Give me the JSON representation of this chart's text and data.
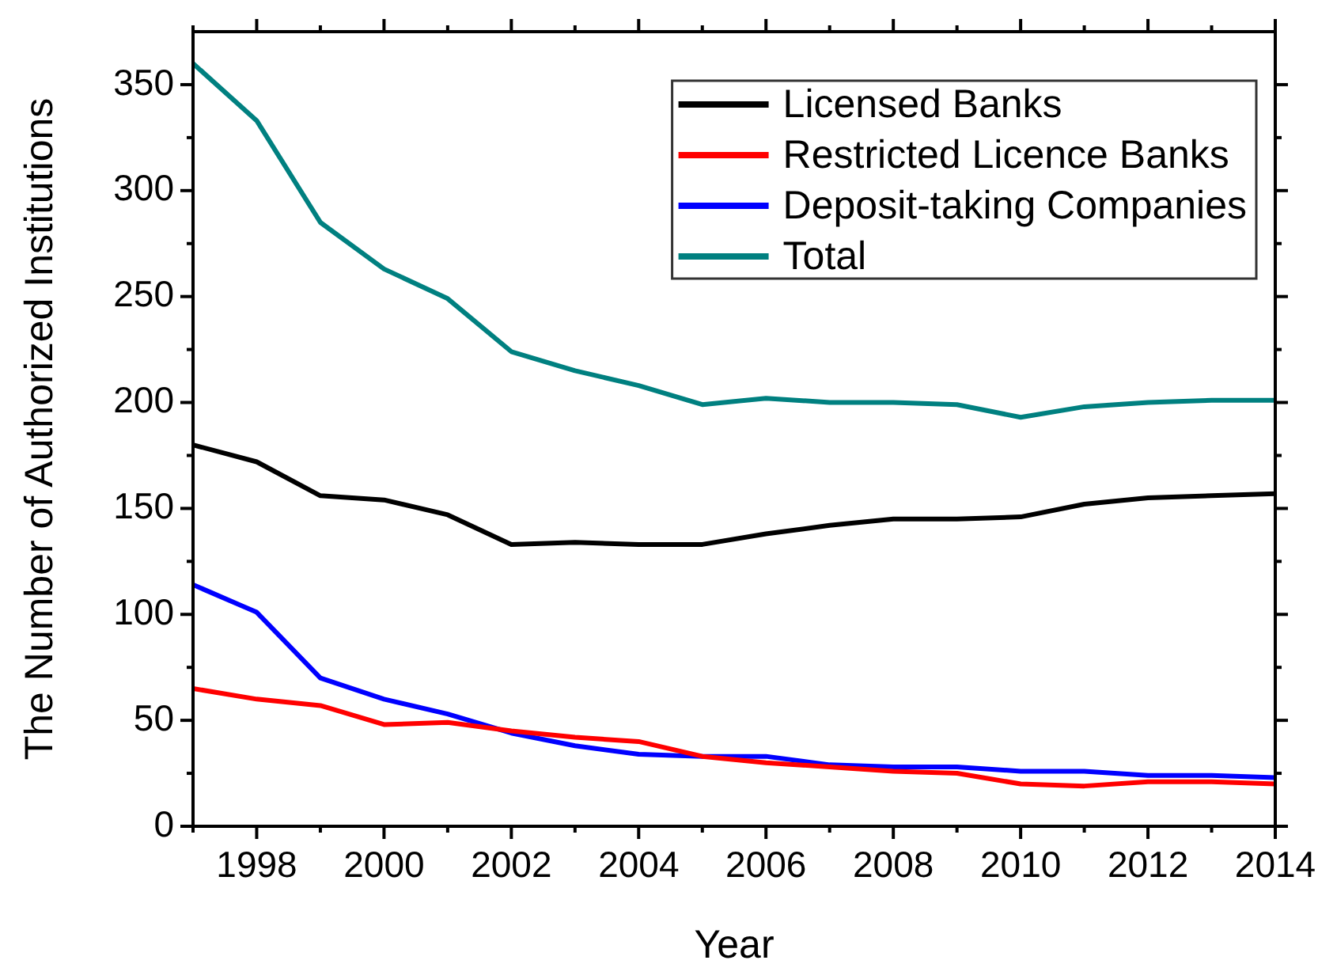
{
  "chart_data": {
    "type": "line",
    "xlabel": "Year",
    "ylabel": "The Number of Authorized Institutions",
    "x": [
      1997,
      1998,
      1999,
      2000,
      2001,
      2002,
      2003,
      2004,
      2005,
      2006,
      2007,
      2008,
      2009,
      2010,
      2011,
      2012,
      2013,
      2014
    ],
    "xlim": [
      1997,
      2014
    ],
    "ylim": [
      0,
      375
    ],
    "xticks": [
      {
        "value": 1997,
        "label": null
      },
      1998,
      {
        "value": 1999,
        "label": null
      },
      2000,
      {
        "value": 2001,
        "label": null
      },
      2002,
      {
        "value": 2003,
        "label": null
      },
      2004,
      {
        "value": 2005,
        "label": null
      },
      2006,
      {
        "value": 2007,
        "label": null
      },
      2008,
      {
        "value": 2009,
        "label": null
      },
      2010,
      {
        "value": 2011,
        "label": null
      },
      2012,
      {
        "value": 2013,
        "label": null
      },
      2014
    ],
    "yticks": [
      0,
      {
        "value": 25,
        "label": null
      },
      50,
      {
        "value": 75,
        "label": null
      },
      100,
      {
        "value": 125,
        "label": null
      },
      150,
      {
        "value": 175,
        "label": null
      },
      200,
      {
        "value": 225,
        "label": null
      },
      250,
      {
        "value": 275,
        "label": null
      },
      300,
      {
        "value": 325,
        "label": null
      },
      350
    ],
    "legend": "top right",
    "marker": "none",
    "line_style": "solid",
    "series": [
      {
        "name": "Licensed Banks",
        "color": "#000000",
        "values": [
          180,
          172,
          156,
          154,
          147,
          133,
          134,
          133,
          133,
          138,
          142,
          145,
          145,
          146,
          152,
          155,
          156,
          157
        ]
      },
      {
        "name": "Restricted Licence Banks",
        "color": "#ff0000",
        "values": [
          65,
          60,
          57,
          48,
          49,
          45,
          42,
          40,
          33,
          30,
          28,
          26,
          25,
          20,
          19,
          21,
          21,
          20
        ]
      },
      {
        "name": "Deposit-taking Companies",
        "color": "#0000ff",
        "values": [
          114,
          101,
          70,
          60,
          53,
          44,
          38,
          34,
          33,
          33,
          29,
          28,
          28,
          26,
          26,
          24,
          24,
          23
        ]
      },
      {
        "name": "Total",
        "color": "#008080",
        "values": [
          360,
          333,
          285,
          263,
          249,
          224,
          215,
          208,
          199,
          202,
          200,
          200,
          199,
          193,
          198,
          200,
          201,
          201
        ]
      }
    ]
  }
}
